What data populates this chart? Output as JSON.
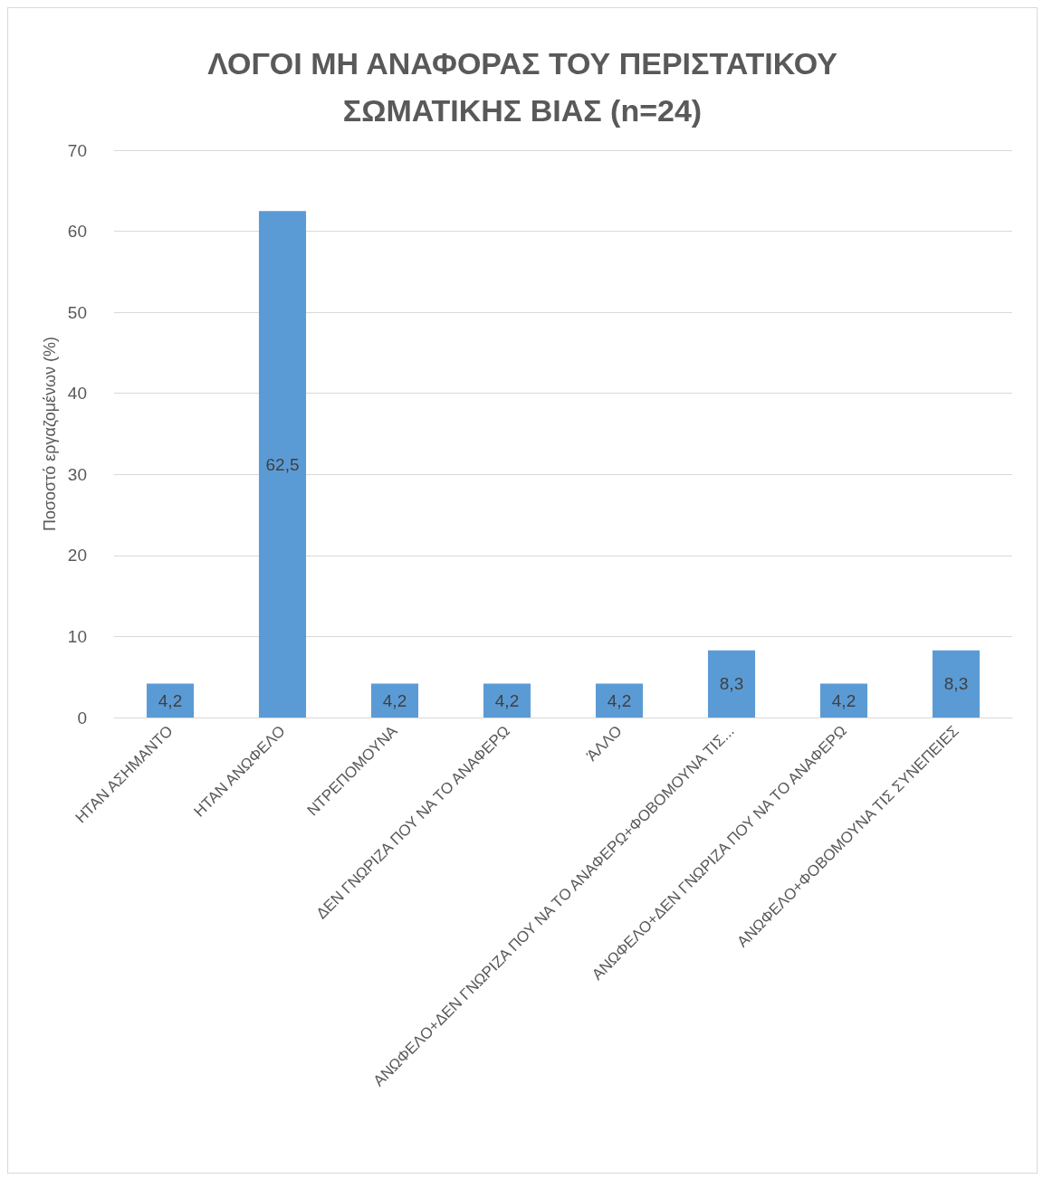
{
  "chart_data": {
    "type": "bar",
    "title": "ΛΟΓΟΙ ΜΗ ΑΝΑΦΟΡΑΣ ΤΟΥ ΠΕΡΙΣΤΑΤΙΚΟΥ\nΣΩΜΑΤΙΚΗΣ ΒΙΑΣ (n=24)",
    "ylabel": "Ποσοστό εργαζομένων (%)",
    "categories": [
      "ΗΤΑΝ ΑΣΗΜΑΝΤΟ",
      "ΗΤΑΝ ΑΝΩΦΕΛΟ",
      "ΝΤΡΕΠΟΜΟΥΝΑ",
      "ΔΕΝ ΓΝΩΡΙΖΑ ΠΟΥ ΝΑ ΤΟ ΑΝΑΦΕΡΩ",
      "ΆΛΛΟ",
      "ΑΝΩΦΕΛΟ+ΔΕΝ ΓΝΩΡΙΖΑ ΠΟΥ ΝΑ ΤΟ ΑΝΑΦΕΡΩ+ΦΟΒΟΜΟΥΝΑ ΤΙΣ...",
      "ΑΝΩΦΕΛΟ+ΔΕΝ ΓΝΩΡΙΖΑ ΠΟΥ ΝΑ ΤΟ ΑΝΑΦΕΡΩ",
      "ΑΝΩΦΕΛΟ+ΦΟΒΟΜΟΥΝΑ ΤΙΣ ΣΥΝΕΠΕΙΕΣ"
    ],
    "values": [
      4.2,
      62.5,
      4.2,
      4.2,
      4.2,
      8.3,
      4.2,
      8.3
    ],
    "value_labels": [
      "4,2",
      "62,5",
      "4,2",
      "4,2",
      "4,2",
      "8,3",
      "4,2",
      "8,3"
    ],
    "color": "#5b9bd5",
    "ylim": [
      0,
      70
    ],
    "yticks": [
      0,
      10,
      20,
      30,
      40,
      50,
      60,
      70
    ],
    "grid": "y"
  }
}
